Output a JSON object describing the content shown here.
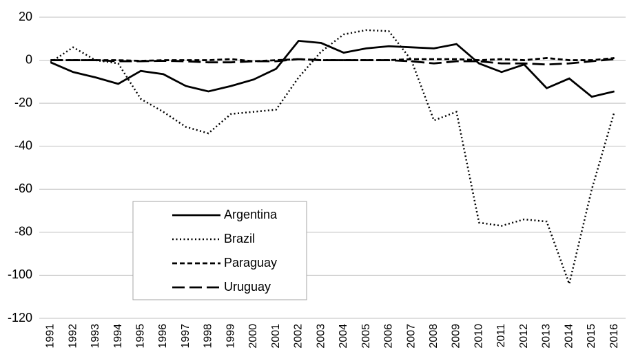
{
  "chart_data": {
    "type": "line",
    "categories": [
      "1991",
      "1992",
      "1993",
      "1994",
      "1995",
      "1996",
      "1997",
      "1998",
      "1999",
      "2000",
      "2001",
      "2002",
      "2003",
      "2004",
      "2005",
      "2006",
      "2007",
      "2008",
      "2009",
      "2010",
      "2011",
      "2012",
      "2013",
      "2014",
      "2015",
      "2016"
    ],
    "series": [
      {
        "name": "Argentina",
        "color": "#000000",
        "dash": "solid",
        "values": [
          -1,
          -5.5,
          -8,
          -11,
          -5,
          -6.5,
          -12,
          -14.5,
          -12,
          -9,
          -4,
          9,
          8,
          3.5,
          5.5,
          6.5,
          6,
          5.5,
          7.5,
          -1.5,
          -5.5,
          -2,
          -13,
          -8.5,
          -17,
          -14.5
        ]
      },
      {
        "name": "Brazil",
        "color": "#000000",
        "dash": "dotted",
        "values": [
          -1,
          6,
          0,
          -1.5,
          -18,
          -24,
          -31,
          -34,
          -25,
          -24,
          -23,
          -8,
          4,
          12,
          14,
          13.5,
          0,
          -28,
          -24,
          -75.5,
          -77,
          -74,
          -75,
          -104,
          -60,
          -24
        ]
      },
      {
        "name": "Paraguay",
        "color": "#000000",
        "dash": "short-dash",
        "values": [
          0,
          0,
          0,
          0,
          -0.3,
          0,
          0,
          0,
          0.5,
          -0.5,
          0,
          0.5,
          0,
          0,
          0,
          0,
          0.5,
          0.5,
          0.5,
          0,
          0.5,
          0,
          1,
          0,
          0,
          1
        ]
      },
      {
        "name": "Uruguay",
        "color": "#000000",
        "dash": "long-dash",
        "values": [
          0,
          0,
          0,
          -0.5,
          -0.5,
          -0.3,
          -0.5,
          -1,
          -1,
          -0.5,
          -0.5,
          0.5,
          0,
          0,
          0,
          0,
          -0.5,
          -1.5,
          -0.5,
          -0.5,
          -1.5,
          -1.5,
          -2,
          -1.5,
          -0.5,
          0.5
        ]
      }
    ],
    "ylim": [
      -120,
      20
    ],
    "yticks": [
      -120,
      -100,
      -80,
      -60,
      -40,
      -20,
      0,
      20
    ],
    "grid": true,
    "legend": "lower left"
  }
}
